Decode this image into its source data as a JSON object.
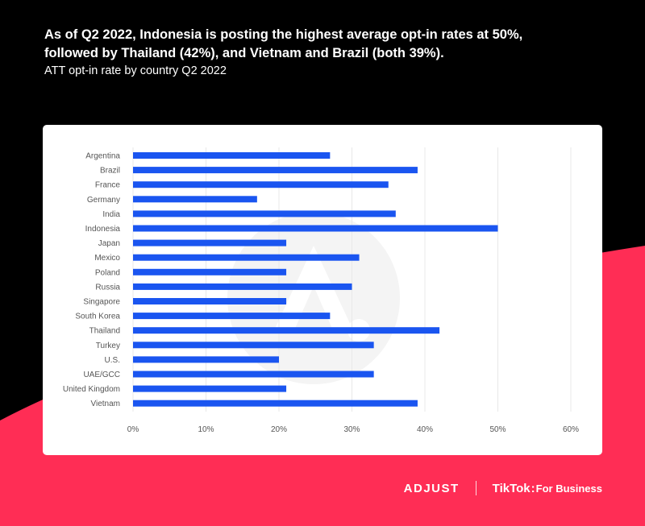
{
  "header": {
    "headline_line1": "As of Q2 2022, Indonesia is posting the highest average opt-in rates at 50%,",
    "headline_line2": "followed by Thailand (42%), and Vietnam and Brazil (both 39%).",
    "subtitle": "ATT opt-in rate by country Q2 2022"
  },
  "footer": {
    "adjust_logo": "ADJUST",
    "tiktok_logo": "TikTok",
    "tiktok_separator": ":",
    "tiktok_sub": "For Business"
  },
  "colors": {
    "background_top": "#000000",
    "background_bottom": "#ff2d55",
    "bar": "#1a55f0",
    "grid": "#e8e8e8",
    "label": "#555555",
    "watermark": "#f4f4f4"
  },
  "chart_data": {
    "type": "bar",
    "orientation": "horizontal",
    "categories": [
      "Argentina",
      "Brazil",
      "France",
      "Germany",
      "India",
      "Indonesia",
      "Japan",
      "Mexico",
      "Poland",
      "Russia",
      "Singapore",
      "South Korea",
      "Thailand",
      "Turkey",
      "U.S.",
      "UAE/GCC",
      "United Kingdom",
      "Vietnam"
    ],
    "series": [
      {
        "values": [
          27,
          39,
          35,
          17,
          36,
          50,
          21,
          31,
          21,
          30,
          21,
          27,
          42,
          33,
          20,
          33,
          21,
          39
        ]
      }
    ],
    "value_unit": "%",
    "xlim": [
      0,
      60
    ],
    "xticks": [
      0,
      10,
      20,
      30,
      40,
      50,
      60
    ],
    "xtick_labels": [
      "0%",
      "10%",
      "20%",
      "30%",
      "40%",
      "50%",
      "60%"
    ],
    "grid": true,
    "legend": "none"
  }
}
